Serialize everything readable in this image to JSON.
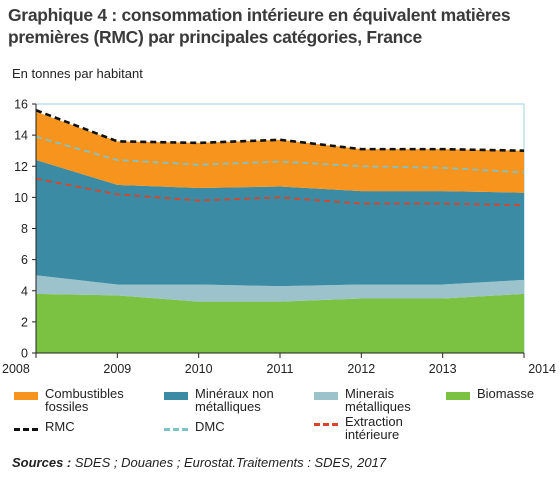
{
  "title": "Graphique 4 : consommation intérieure en équivalent matières premières (RMC) par principales catégories, France",
  "source_label": "Sources :",
  "source_text": " SDES ; Douanes ; Eurostat.Traitements : SDES, 2017",
  "chart_data": {
    "type": "area",
    "ylabel": "En tonnes par habitant",
    "ylim": [
      0,
      16
    ],
    "yticks": [
      0,
      2,
      4,
      6,
      8,
      10,
      12,
      14,
      16
    ],
    "x": [
      "2008",
      "2009",
      "2010",
      "2011",
      "2012",
      "2013",
      "2014"
    ],
    "grid": false,
    "legend_position": "bottom",
    "series": [
      {
        "name": "Biomasse",
        "kind": "stacked-area",
        "color": "#7cc242",
        "values": [
          3.8,
          3.7,
          3.3,
          3.3,
          3.5,
          3.5,
          3.8
        ]
      },
      {
        "name": "Minerais métalliques",
        "kind": "stacked-area",
        "color": "#9cc3cc",
        "values": [
          1.2,
          0.7,
          1.1,
          1.0,
          0.9,
          0.9,
          0.9
        ]
      },
      {
        "name": "Minéraux non métalliques",
        "kind": "stacked-area",
        "color": "#3a8ba3",
        "values": [
          7.4,
          6.4,
          6.2,
          6.4,
          6.0,
          6.0,
          5.6
        ]
      },
      {
        "name": "Combustibles fossiles",
        "kind": "stacked-area",
        "color": "#f7941e",
        "values": [
          3.1,
          2.8,
          2.9,
          3.0,
          2.7,
          2.7,
          2.7
        ]
      },
      {
        "name": "RMC",
        "kind": "line",
        "color": "#111111",
        "dash": "6 4",
        "values": [
          15.6,
          13.6,
          13.5,
          13.7,
          13.1,
          13.1,
          13.0
        ]
      },
      {
        "name": "DMC",
        "kind": "line",
        "color": "#7fc3c8",
        "dash": "6 4",
        "values": [
          13.9,
          12.4,
          12.1,
          12.3,
          12.0,
          11.9,
          11.6
        ]
      },
      {
        "name": "Extraction intérieure",
        "kind": "line",
        "color": "#d9442b",
        "dash": "6 4",
        "values": [
          11.2,
          10.2,
          9.8,
          10.0,
          9.6,
          9.6,
          9.5
        ]
      }
    ]
  },
  "legend": {
    "combustibles": "Combustibles fossiles",
    "mineraux": "Minéraux non métalliques",
    "minerais": "Minerais métalliques",
    "biomasse": "Biomasse",
    "rmc": "RMC",
    "dmc": "DMC",
    "extraction": "Extraction intérieure"
  }
}
